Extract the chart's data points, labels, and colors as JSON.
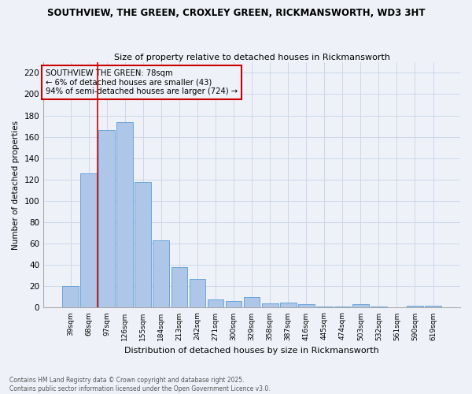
{
  "title_line1": "SOUTHVIEW, THE GREEN, CROXLEY GREEN, RICKMANSWORTH, WD3 3HT",
  "title_line2": "Size of property relative to detached houses in Rickmansworth",
  "xlabel": "Distribution of detached houses by size in Rickmansworth",
  "ylabel": "Number of detached properties",
  "footnote": "Contains HM Land Registry data © Crown copyright and database right 2025.\nContains public sector information licensed under the Open Government Licence v3.0.",
  "categories": [
    "39sqm",
    "68sqm",
    "97sqm",
    "126sqm",
    "155sqm",
    "184sqm",
    "213sqm",
    "242sqm",
    "271sqm",
    "300sqm",
    "329sqm",
    "358sqm",
    "387sqm",
    "416sqm",
    "445sqm",
    "474sqm",
    "503sqm",
    "532sqm",
    "561sqm",
    "590sqm",
    "619sqm"
  ],
  "values": [
    20,
    126,
    166,
    174,
    118,
    63,
    38,
    27,
    8,
    6,
    10,
    4,
    5,
    3,
    1,
    1,
    3,
    1,
    0,
    2,
    2
  ],
  "bar_color": "#aec6e8",
  "bar_edge_color": "#5b9bd5",
  "grid_color": "#cdd6e8",
  "background_color": "#eef2f8",
  "annotation_box_text": "SOUTHVIEW THE GREEN: 78sqm\n← 6% of detached houses are smaller (43)\n94% of semi-detached houses are larger (724) →",
  "annotation_box_color": "#cc0000",
  "vline_x": 1.5,
  "vline_color": "#cc0000",
  "ylim": [
    0,
    230
  ],
  "yticks": [
    0,
    20,
    40,
    60,
    80,
    100,
    120,
    140,
    160,
    180,
    200,
    220
  ]
}
